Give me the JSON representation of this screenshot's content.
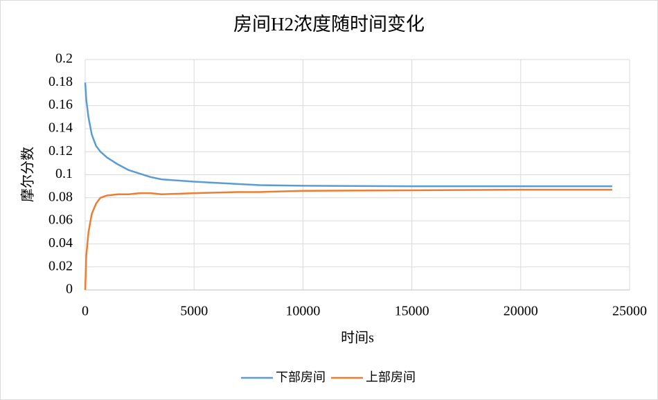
{
  "chart_data": {
    "type": "line",
    "title": "房间H2浓度随时间变化",
    "x_label": "时间s",
    "y_label": "摩尔分数",
    "x": [
      0,
      50,
      150,
      300,
      500,
      700,
      1000,
      1500,
      2000,
      2500,
      3000,
      3500,
      5000,
      7000,
      8000,
      10000,
      15000,
      20000,
      24200
    ],
    "series": [
      {
        "name": "下部房间",
        "color": "#5b9bd5",
        "values": [
          0.18,
          0.165,
          0.15,
          0.135,
          0.125,
          0.12,
          0.115,
          0.109,
          0.104,
          0.101,
          0.098,
          0.096,
          0.094,
          0.092,
          0.091,
          0.0905,
          0.09,
          0.09,
          0.09
        ]
      },
      {
        "name": "上部房间",
        "color": "#ed7d31",
        "values": [
          0,
          0.03,
          0.05,
          0.066,
          0.075,
          0.08,
          0.082,
          0.083,
          0.083,
          0.084,
          0.084,
          0.083,
          0.084,
          0.085,
          0.085,
          0.086,
          0.0865,
          0.087,
          0.087
        ]
      }
    ],
    "xlim": [
      0,
      25000
    ],
    "xticks": [
      0,
      5000,
      10000,
      15000,
      20000,
      25000
    ],
    "ylim": [
      0,
      0.2
    ],
    "yticks": [
      0,
      0.02,
      0.04,
      0.06,
      0.08,
      0.1,
      0.12,
      0.14,
      0.16,
      0.18,
      0.2
    ],
    "grid": true,
    "legend": "bottom"
  }
}
